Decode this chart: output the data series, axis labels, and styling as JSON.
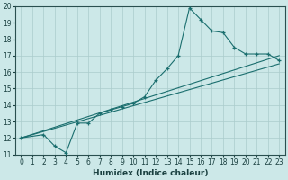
{
  "xlabel": "Humidex (Indice chaleur)",
  "bg_color": "#cce8e8",
  "grid_color": "#aacccc",
  "line_color": "#1a6e6e",
  "xlim": [
    -0.5,
    23.5
  ],
  "ylim": [
    11,
    20
  ],
  "xticks": [
    0,
    1,
    2,
    3,
    4,
    5,
    6,
    7,
    8,
    9,
    10,
    11,
    12,
    13,
    14,
    15,
    16,
    17,
    18,
    19,
    20,
    21,
    22,
    23
  ],
  "yticks": [
    11,
    12,
    13,
    14,
    15,
    16,
    17,
    18,
    19,
    20
  ],
  "line1_x": [
    0,
    23
  ],
  "line1_y": [
    12.0,
    16.5
  ],
  "line2_x": [
    0,
    23
  ],
  "line2_y": [
    12.0,
    17.0
  ],
  "curve_x": [
    0,
    2,
    3,
    4,
    5,
    6,
    7,
    8,
    9,
    10,
    11,
    12,
    13,
    14,
    15,
    16,
    17,
    18,
    19,
    20,
    21,
    22,
    23
  ],
  "curve_y": [
    12.0,
    12.2,
    11.5,
    11.1,
    12.9,
    12.9,
    13.5,
    13.7,
    13.9,
    14.1,
    14.5,
    15.5,
    16.2,
    17.0,
    19.9,
    19.2,
    18.5,
    18.4,
    17.5,
    17.1,
    17.1,
    17.1,
    16.7
  ]
}
